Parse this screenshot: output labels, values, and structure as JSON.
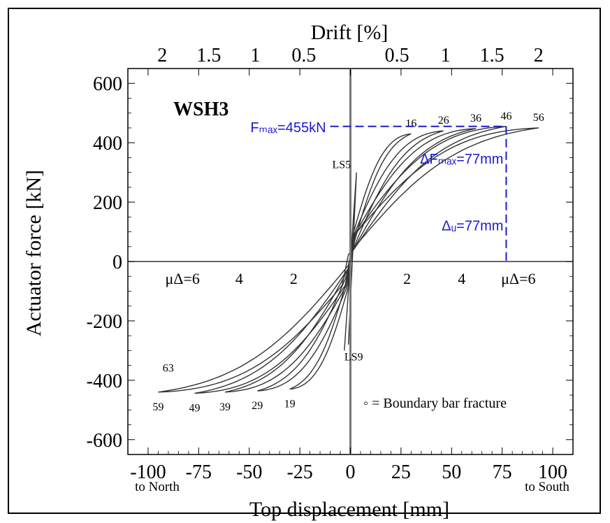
{
  "chart_data": {
    "type": "line",
    "title": "WSH3",
    "xlabel": "Top displacement [mm]",
    "ylabel": "Actuator force [kN]",
    "top_axis_label": "Drift [%]",
    "xlim": [
      -110,
      110
    ],
    "ylim": [
      -650,
      650
    ],
    "x_ticks": [
      -100,
      -75,
      -50,
      -25,
      0,
      25,
      50,
      75,
      100
    ],
    "y_ticks": [
      -600,
      -400,
      -200,
      0,
      200,
      400,
      600
    ],
    "drift_ticks": [
      {
        "x": -93,
        "label": "2"
      },
      {
        "x": -70,
        "label": "1.5"
      },
      {
        "x": -47,
        "label": "1"
      },
      {
        "x": -23,
        "label": "0.5"
      },
      {
        "x": 23,
        "label": "0.5"
      },
      {
        "x": 47,
        "label": "1"
      },
      {
        "x": 70,
        "label": "1.5"
      },
      {
        "x": 93,
        "label": "2"
      }
    ],
    "x_end_labels": {
      "left": "to North",
      "right": "to South"
    },
    "ductility_labels": [
      {
        "x": -83,
        "text": "μΔ=6"
      },
      {
        "x": -55,
        "text": "4"
      },
      {
        "x": -28,
        "text": "2"
      },
      {
        "x": 28,
        "text": "2"
      },
      {
        "x": 55,
        "text": "4"
      },
      {
        "x": 83,
        "text": "μΔ=6"
      }
    ],
    "loop_peaks": [
      {
        "id": "LS5",
        "x": 3,
        "y": 300
      },
      {
        "id": "LS9",
        "x": -3,
        "y": -300
      },
      {
        "id": "16",
        "x": 30,
        "y": 430
      },
      {
        "id": "26",
        "x": 46,
        "y": 440
      },
      {
        "id": "36",
        "x": 62,
        "y": 448
      },
      {
        "id": "46",
        "x": 77,
        "y": 455
      },
      {
        "id": "56",
        "x": 93,
        "y": 450
      },
      {
        "id": "19",
        "x": -30,
        "y": -430
      },
      {
        "id": "29",
        "x": -46,
        "y": -436
      },
      {
        "id": "39",
        "x": -62,
        "y": -440
      },
      {
        "id": "49",
        "x": -77,
        "y": -444
      },
      {
        "id": "59",
        "x": -95,
        "y": -440
      },
      {
        "id": "63",
        "x": -88,
        "y": -390
      }
    ],
    "annotations": {
      "fmax": "Fₘₐₓ=455kN",
      "dfmax": "ΔFₘₐₓ=77mm",
      "du": "Δᵤ=77mm",
      "fmax_value": 455,
      "dfmax_value": 77,
      "du_value": 77
    },
    "legend": "◦ = Boundary bar fracture",
    "legend_position": "bottom-right",
    "grid": false
  },
  "colors": {
    "curve": "#333333",
    "axis": "#000000",
    "annotation": "#1a1ad4"
  }
}
